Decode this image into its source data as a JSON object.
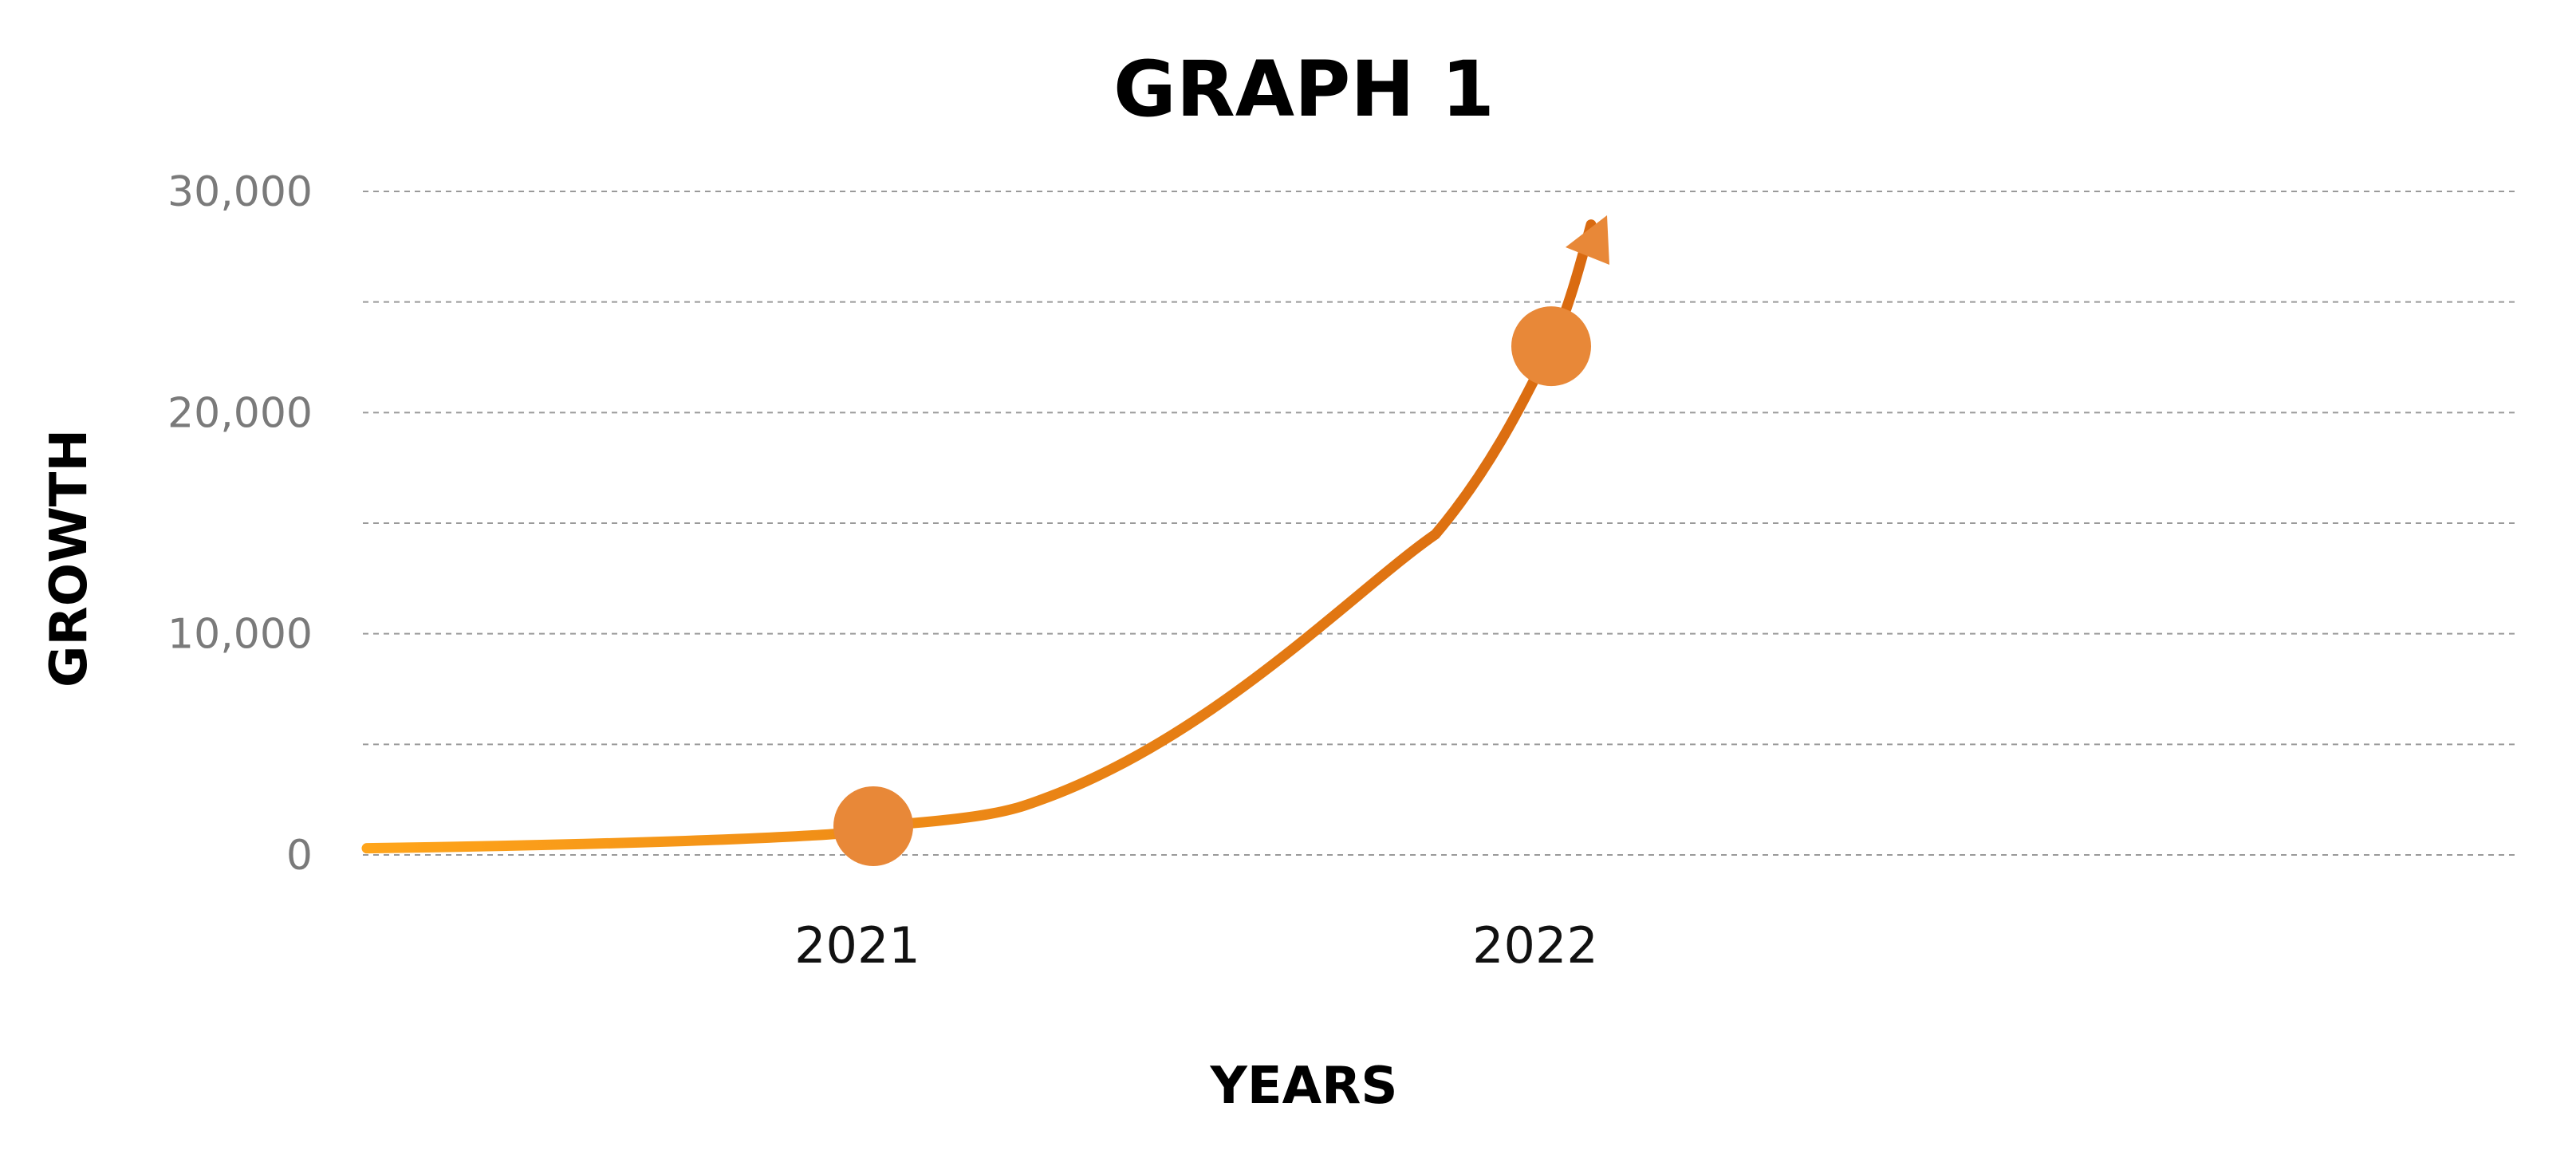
{
  "chart_data": {
    "type": "line",
    "title": "GRAPH 1",
    "xlabel": "YEARS",
    "ylabel": "GROWTH",
    "categories": [
      "2021",
      "2022"
    ],
    "y_ticks": [
      "0",
      "10,000",
      "20,000",
      "30,000"
    ],
    "ylim": [
      0,
      30000
    ],
    "grid": true,
    "series": [
      {
        "values": [
          1300,
          23000
        ]
      }
    ],
    "curve": {
      "start_value": 300,
      "end_value": 28500
    },
    "colors": {
      "line_start": "#FFA51B",
      "line_end": "#D96A10",
      "marker": "#E88838",
      "grid": "#9a9a9a"
    }
  }
}
